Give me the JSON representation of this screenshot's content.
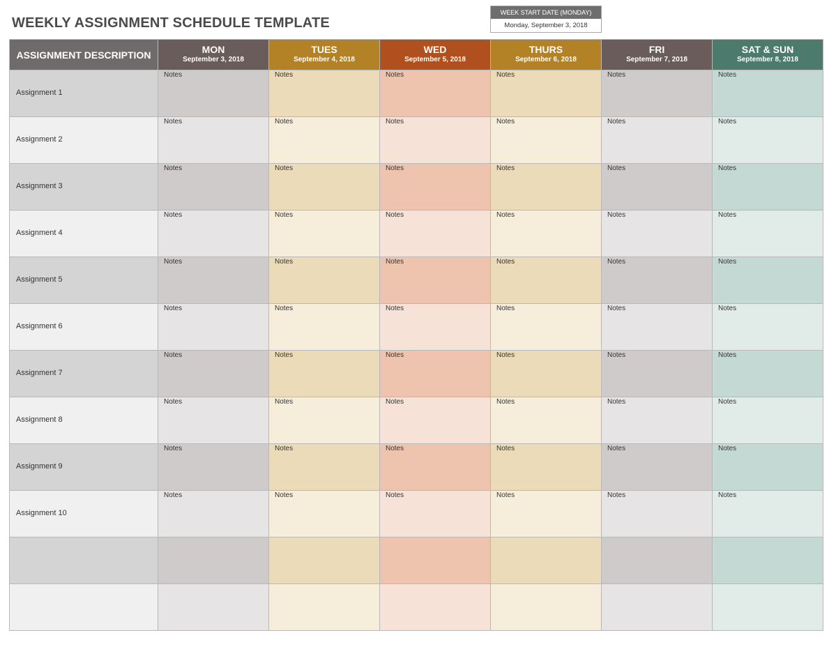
{
  "title": "WEEKLY ASSIGNMENT SCHEDULE TEMPLATE",
  "week_start": {
    "label": "WEEK START DATE (MONDAY)",
    "value": "Monday, September 3, 2018"
  },
  "header": {
    "description_label": "ASSIGNMENT DESCRIPTION",
    "days": [
      {
        "name": "MON",
        "date": "September 3, 2018",
        "color": "#6a5c5b"
      },
      {
        "name": "TUES",
        "date": "September 4, 2018",
        "color": "#b38227"
      },
      {
        "name": "WED",
        "date": "September 5, 2018",
        "color": "#b0501f"
      },
      {
        "name": "THURS",
        "date": "September 6, 2018",
        "color": "#b38227"
      },
      {
        "name": "FRI",
        "date": "September 7, 2018",
        "color": "#6a5c5b"
      },
      {
        "name": "SAT & SUN",
        "date": "September 8, 2018",
        "color": "#4c7b6d"
      }
    ]
  },
  "notes_label": "Notes",
  "rows": [
    {
      "description": "Assignment 1",
      "notes": [
        "Notes",
        "Notes",
        "Notes",
        "Notes",
        "Notes",
        "Notes"
      ]
    },
    {
      "description": "Assignment 2",
      "notes": [
        "Notes",
        "Notes",
        "Notes",
        "Notes",
        "Notes",
        "Notes"
      ]
    },
    {
      "description": "Assignment 3",
      "notes": [
        "Notes",
        "Notes",
        "Notes",
        "Notes",
        "Notes",
        "Notes"
      ]
    },
    {
      "description": "Assignment 4",
      "notes": [
        "Notes",
        "Notes",
        "Notes",
        "Notes",
        "Notes",
        "Notes"
      ]
    },
    {
      "description": "Assignment 5",
      "notes": [
        "Notes",
        "Notes",
        "Notes",
        "Notes",
        "Notes",
        "Notes"
      ]
    },
    {
      "description": "Assignment 6",
      "notes": [
        "Notes",
        "Notes",
        "Notes",
        "Notes",
        "Notes",
        "Notes"
      ]
    },
    {
      "description": "Assignment 7",
      "notes": [
        "Notes",
        "Notes",
        "Notes",
        "Notes",
        "Notes",
        "Notes"
      ]
    },
    {
      "description": "Assignment 8",
      "notes": [
        "Notes",
        "Notes",
        "Notes",
        "Notes",
        "Notes",
        "Notes"
      ]
    },
    {
      "description": "Assignment 9",
      "notes": [
        "Notes",
        "Notes",
        "Notes",
        "Notes",
        "Notes",
        "Notes"
      ]
    },
    {
      "description": "Assignment 10",
      "notes": [
        "Notes",
        "Notes",
        "Notes",
        "Notes",
        "Notes",
        "Notes"
      ]
    },
    {
      "description": "",
      "notes": [
        "",
        "",
        "",
        "",
        "",
        ""
      ]
    },
    {
      "description": "",
      "notes": [
        "",
        "",
        "",
        "",
        "",
        ""
      ]
    }
  ]
}
